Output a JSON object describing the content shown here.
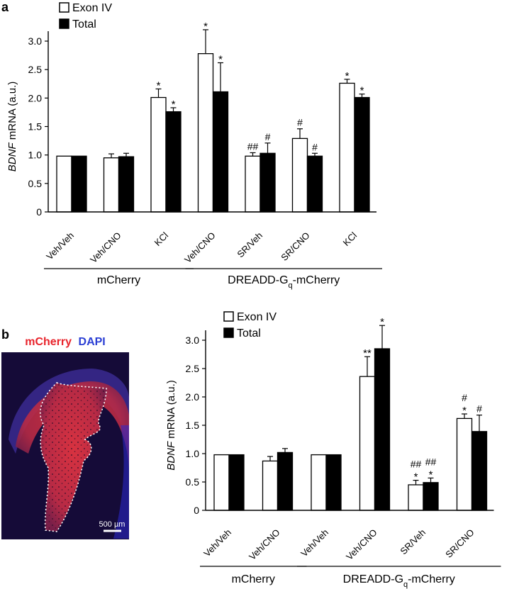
{
  "legend": {
    "exon": "Exon IV",
    "total": "Total"
  },
  "colors": {
    "exon": "#ffffff",
    "total": "#000000",
    "mcherry_red": "#e8232b",
    "dapi_blue": "#2b3fd4"
  },
  "microscopy": {
    "channel_red": "mCherry",
    "channel_blue": "DAPI",
    "scale_bar": "500 µm"
  },
  "chart_data": [
    {
      "panel": "a",
      "type": "bar",
      "ylabel_italic": "BDNF",
      "ylabel_rest": " mRNA (a.u.)",
      "ylim": [
        0,
        3.0
      ],
      "yticks": [
        "0",
        "0.5",
        "1.0",
        "1.5",
        "2.0",
        "2.5",
        "3.0"
      ],
      "categories": [
        "Veh/Veh",
        "Veh/CNO",
        "KCl",
        "Veh/CNO",
        "SR/Veh",
        "SR/CNO",
        "KCl"
      ],
      "groups": [
        {
          "label": "mCherry",
          "sub": "",
          "rest": "",
          "from": 0,
          "to": 2
        },
        {
          "label": "DREADD-G",
          "sub": "q",
          "rest": "-mCherry",
          "from": 3,
          "to": 6
        }
      ],
      "series": [
        {
          "name": "Exon IV",
          "values": [
            0.98,
            0.95,
            2.01,
            2.78,
            0.98,
            1.29,
            2.26
          ],
          "errors": [
            0,
            0.07,
            0.15,
            0.42,
            0.06,
            0.17,
            0.07
          ],
          "annotations": [
            "",
            "",
            "*",
            "*",
            "##",
            "#",
            "*"
          ]
        },
        {
          "name": "Total",
          "values": [
            0.98,
            0.97,
            1.76,
            2.11,
            1.03,
            0.98,
            2.01
          ],
          "errors": [
            0,
            0.06,
            0.07,
            0.51,
            0.18,
            0.05,
            0.06
          ],
          "annotations": [
            "",
            "",
            "*",
            "*",
            "#",
            "#",
            "*"
          ]
        }
      ]
    },
    {
      "panel": "b",
      "type": "bar",
      "ylabel_italic": "BDNF",
      "ylabel_rest": " mRNA (a.u.)",
      "ylim": [
        0,
        3.0
      ],
      "yticks": [
        "0",
        "0.5",
        "1.0",
        "1.5",
        "2.0",
        "2.5",
        "3.0"
      ],
      "categories": [
        "Veh/Veh",
        "Veh/CNO",
        "Veh/Veh",
        "Veh/CNO",
        "SR/Veh",
        "SR/CNO"
      ],
      "groups": [
        {
          "label": "mCherry",
          "sub": "",
          "rest": "",
          "from": 0,
          "to": 1
        },
        {
          "label": "DREADD-G",
          "sub": "q",
          "rest": "-mCherry",
          "from": 2,
          "to": 5
        }
      ],
      "series": [
        {
          "name": "Exon IV",
          "values": [
            0.98,
            0.87,
            0.98,
            2.36,
            0.45,
            1.62
          ],
          "errors": [
            0,
            0.08,
            0,
            0.35,
            0.08,
            0.08
          ],
          "annotations": [
            "",
            "",
            "",
            "**",
            "##\n*",
            "#\n*"
          ]
        },
        {
          "name": "Total",
          "values": [
            0.98,
            1.02,
            0.98,
            2.85,
            0.49,
            1.39
          ],
          "errors": [
            0,
            0.07,
            0,
            0.41,
            0.08,
            0.29
          ],
          "annotations": [
            "",
            "",
            "",
            "*",
            "##\n*",
            "#"
          ]
        }
      ]
    }
  ]
}
